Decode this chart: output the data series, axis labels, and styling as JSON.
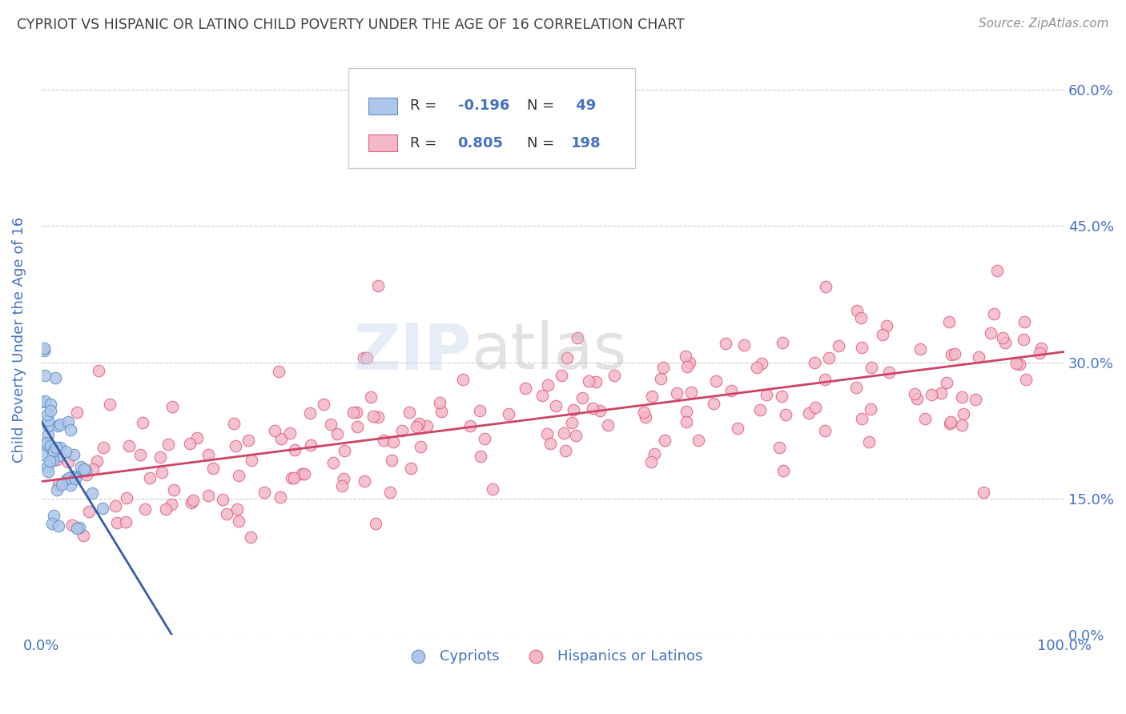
{
  "title": "CYPRIOT VS HISPANIC OR LATINO CHILD POVERTY UNDER THE AGE OF 16 CORRELATION CHART",
  "source": "Source: ZipAtlas.com",
  "ylabel": "Child Poverty Under the Age of 16",
  "xlim": [
    0,
    100
  ],
  "ylim": [
    0,
    65
  ],
  "x_tick_labels": [
    "0.0%",
    "100.0%"
  ],
  "y_tick_labels": [
    "0.0%",
    "15.0%",
    "30.0%",
    "45.0%",
    "60.0%"
  ],
  "y_tick_values": [
    0,
    15,
    30,
    45,
    60
  ],
  "color_cypriot_fill": "#aec6e8",
  "color_cypriot_edge": "#6090c8",
  "color_hispanic_fill": "#f4b8c8",
  "color_hispanic_edge": "#e06080",
  "color_trend_cypriot": "#3a5ca8",
  "color_trend_hispanic": "#cc4466",
  "color_label": "#4472c4",
  "color_title": "#404040",
  "color_source": "#909090",
  "background_color": "#ffffff",
  "grid_color": "#cccccc",
  "seed_cypriot": 10,
  "seed_hispanic": 42
}
